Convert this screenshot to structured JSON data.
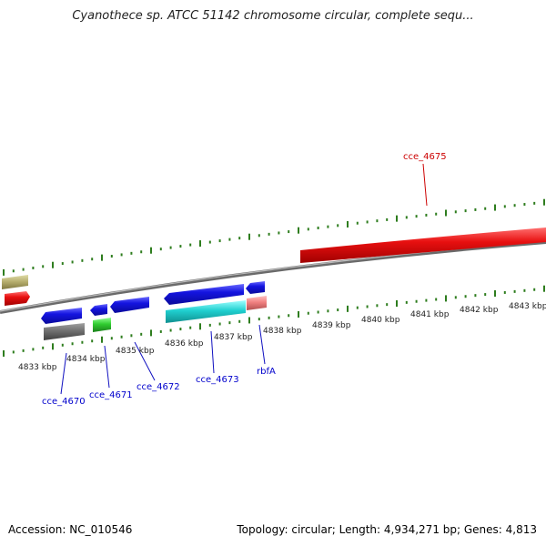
{
  "title": "Cyanothece sp. ATCC 51142 chromosome circular, complete sequ...",
  "accession": "Accession: NC_010546",
  "summary": "Topology: circular; Length: 4,934,271 bp; Genes: 4,813",
  "scale": {
    "labels": [
      "4833 kbp",
      "4834 kbp",
      "4835 kbp",
      "4836 kbp",
      "4837 kbp",
      "4838 kbp",
      "4839 kbp",
      "4840 kbp",
      "4841 kbp",
      "4842 kbp",
      "4843 kbp"
    ],
    "tick_color": "#2e7d1e"
  },
  "genes": [
    {
      "name": "cce_4670",
      "label_color": "#0000cc"
    },
    {
      "name": "cce_4671",
      "label_color": "#0000cc"
    },
    {
      "name": "cce_4672",
      "label_color": "#0000cc"
    },
    {
      "name": "cce_4673",
      "label_color": "#0000cc"
    },
    {
      "name": "rbfA",
      "label_color": "#0000cc"
    },
    {
      "name": "cce_4675",
      "label_color": "#cc0000"
    }
  ],
  "colors": {
    "backbone": "#8a8a8a",
    "blue_gene": "#1414e0",
    "red_gene": "#e81010",
    "cyan_gene": "#20d0d0",
    "gray_gene": "#707070",
    "green_gene": "#30cc30",
    "olive_gene": "#b8b070",
    "pink_gene": "#f08080"
  }
}
